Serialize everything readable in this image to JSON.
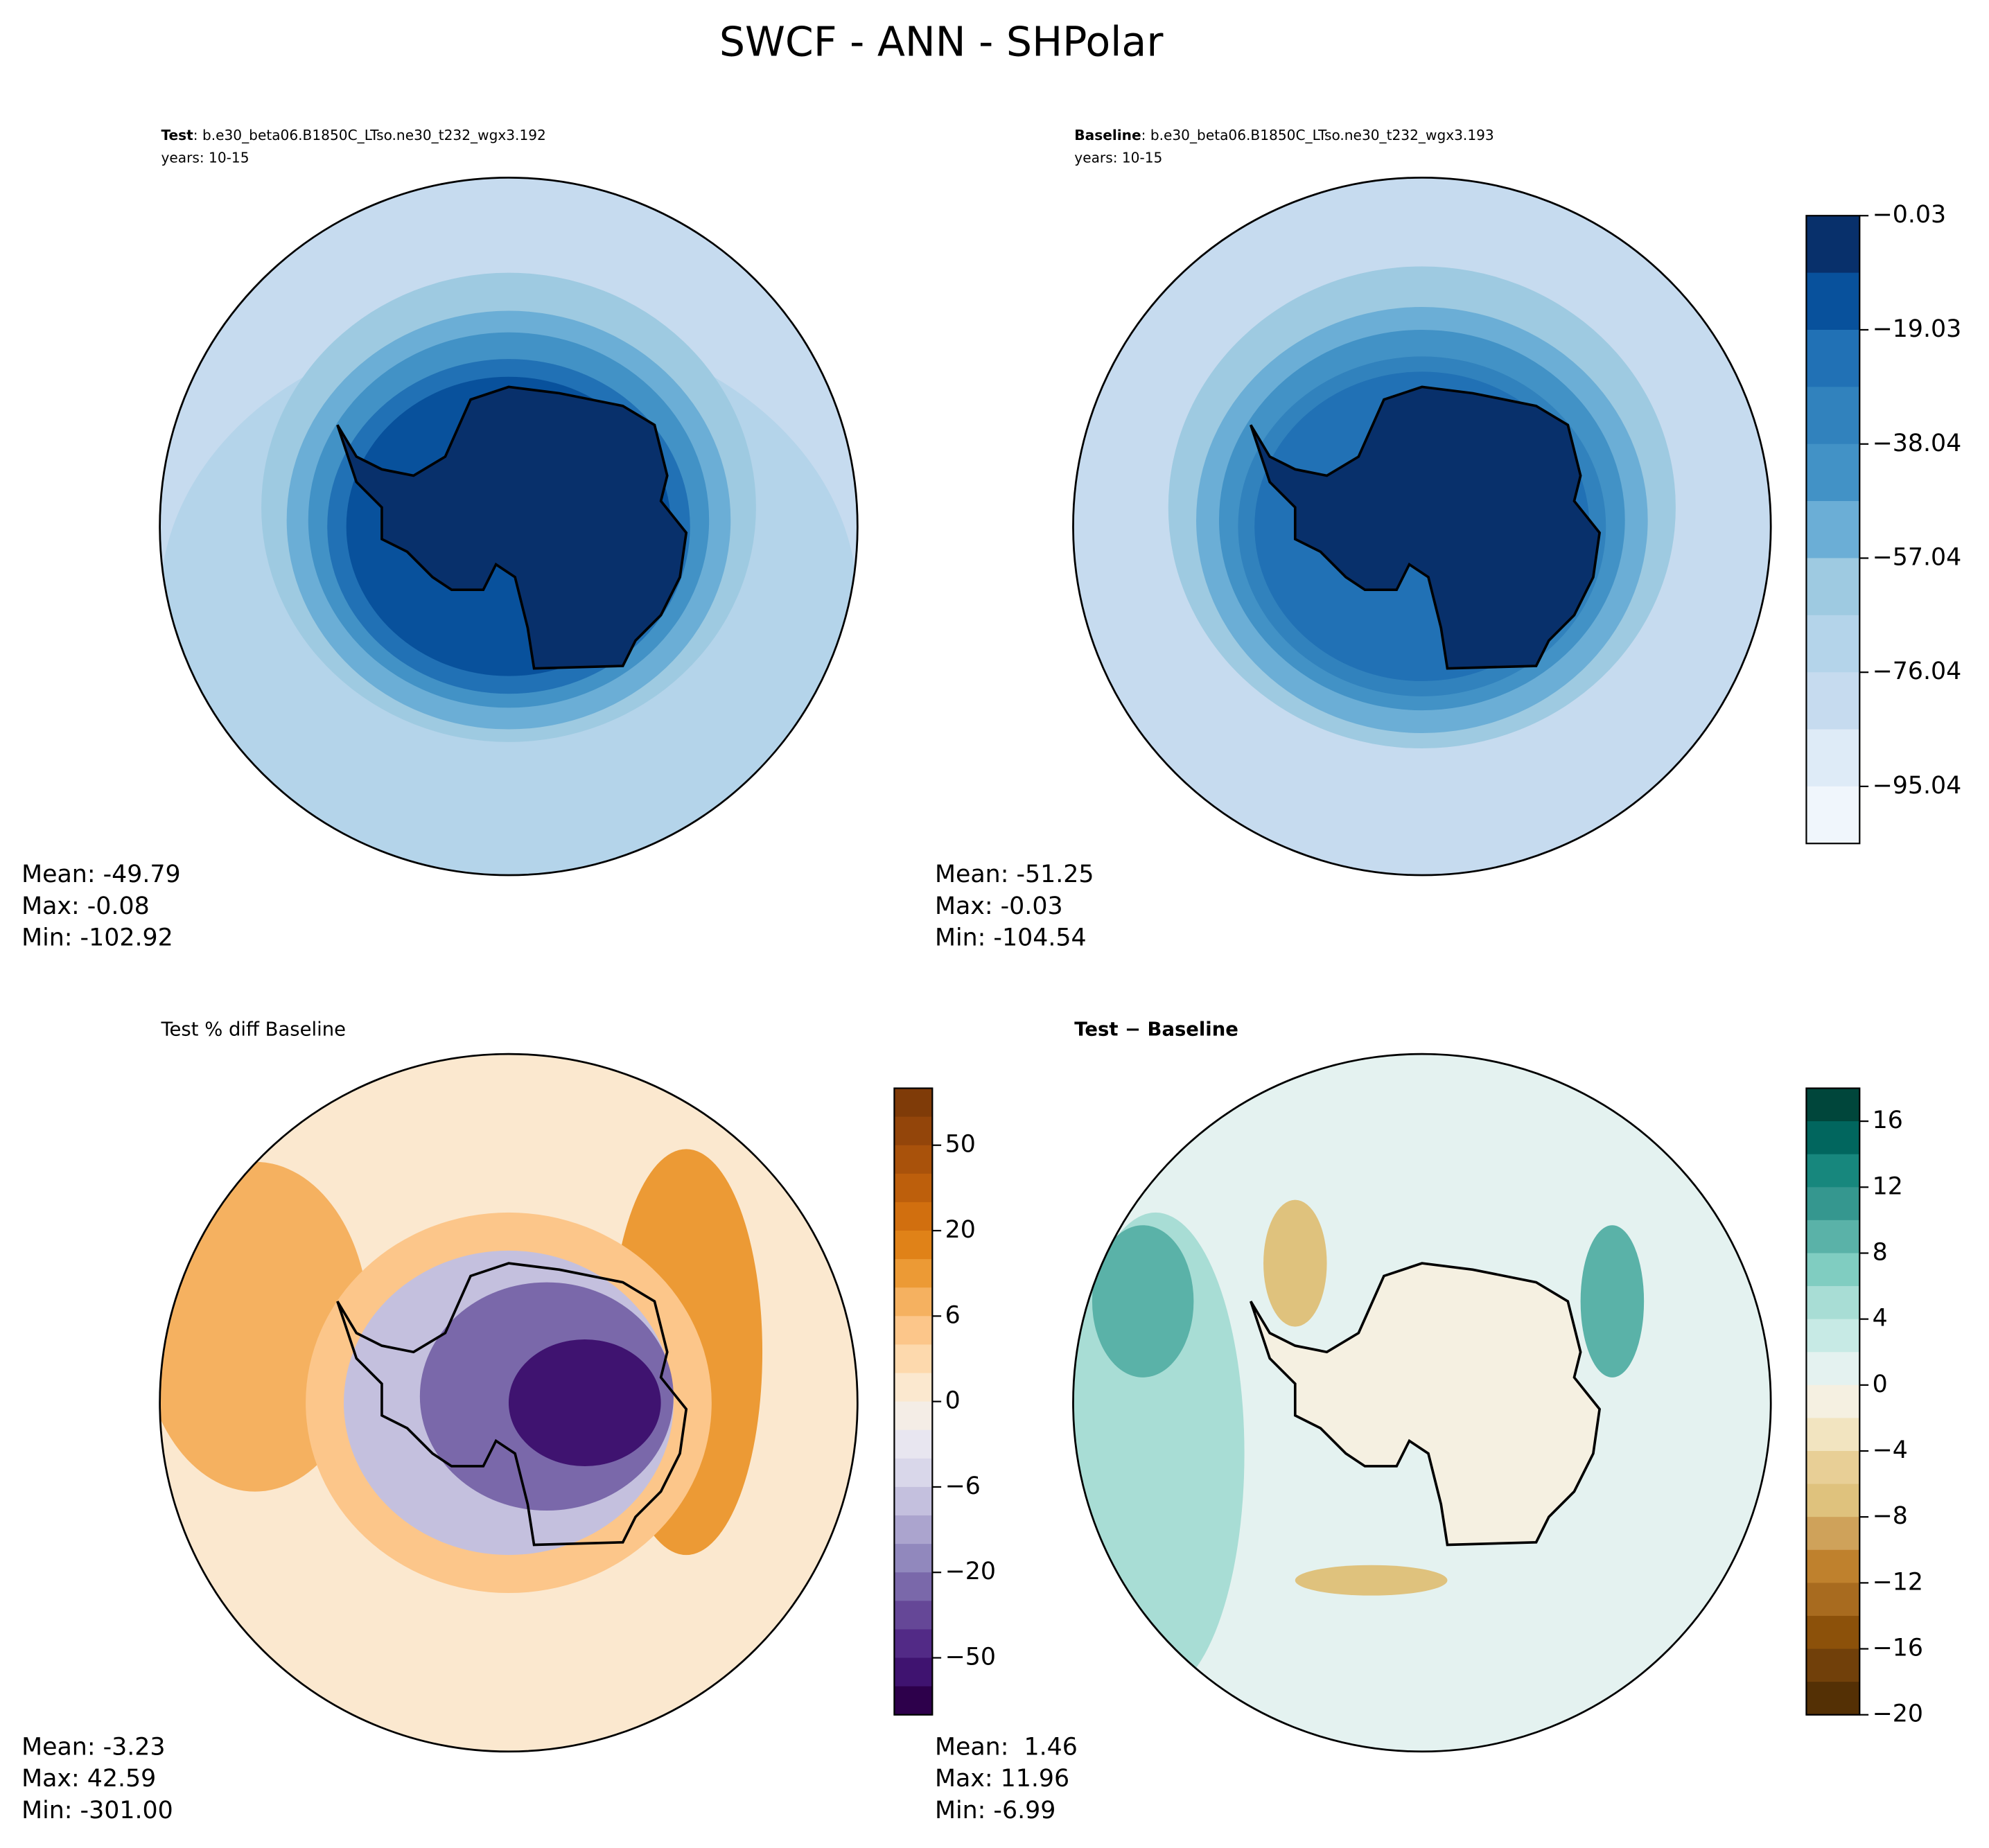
{
  "title": "SWCF - ANN - SHPolar",
  "panels": [
    {
      "label_bold": "Test",
      "label_rest": ": b.e30_beta06.B1850C_LTso.ne30_t232_wgx3.192",
      "years": "years: 10-15",
      "stats": [
        "Mean: -49.79",
        "Max: -0.08",
        "Min: -102.92"
      ]
    },
    {
      "label_bold": "Baseline",
      "label_rest": ": b.e30_beta06.B1850C_LTso.ne30_t232_wgx3.193",
      "years": "years: 10-15",
      "stats": [
        "Mean: -51.25",
        "Max: -0.03",
        "Min: -104.54"
      ]
    },
    {
      "label_rest": "Test % diff Baseline",
      "stats": [
        "Mean: -3.23",
        "Max: 42.59",
        "Min: -301.00"
      ]
    },
    {
      "label_bold": "Test − Baseline",
      "stats": [
        "Mean:  1.46",
        "Max: 11.96",
        "Min: -6.99"
      ]
    }
  ],
  "colorbars": [
    {
      "colors": [
        "#08306b",
        "#08519c",
        "#2171b5",
        "#3182bd",
        "#4292c6",
        "#6baed6",
        "#9ecae1",
        "#b4d4ea",
        "#c6dbef",
        "#deebf7",
        "#f0f6fc"
      ],
      "lim": [
        -104.54,
        -0.03
      ],
      "ticks": [
        {
          "value": -0.03,
          "label": "−0.03"
        },
        {
          "value": -19.03,
          "label": "−19.03"
        },
        {
          "value": -38.04,
          "label": "−38.04"
        },
        {
          "value": -57.04,
          "label": "−57.04"
        },
        {
          "value": -76.04,
          "label": "−76.04"
        },
        {
          "value": -95.04,
          "label": "−95.04"
        }
      ]
    },
    {
      "colors": [
        "#7f3b08",
        "#93450a",
        "#a9520b",
        "#bd5f0c",
        "#d16f0f",
        "#e08218",
        "#ec9a35",
        "#f5b160",
        "#fcc68a",
        "#fdd9ad",
        "#fbe8cf",
        "#f4ede6",
        "#e8e6f0",
        "#d9d7ea",
        "#c4c0de",
        "#aba4ce",
        "#9188bd",
        "#7a68aa",
        "#654797",
        "#522a86",
        "#3f1370",
        "#2d004b"
      ],
      "ticks": [
        50,
        20,
        6,
        0,
        {
          "value": -6,
          "label": "−6"
        },
        {
          "value": -20,
          "label": "−20"
        },
        {
          "value": -50,
          "label": "−50"
        }
      ]
    },
    {
      "colors": [
        "#00463b",
        "#01665e",
        "#17877d",
        "#35978f",
        "#5ab2a8",
        "#80cdc1",
        "#a8ddd5",
        "#c7eae5",
        "#e4f2f0",
        "#f5f0e1",
        "#f2e4c0",
        "#e8cf96",
        "#dfc27d",
        "#cfa25a",
        "#bf812d",
        "#a86b1f",
        "#8c510a",
        "#71400a",
        "#543005"
      ],
      "lim": [
        -20,
        18
      ],
      "ticks": [
        16,
        12,
        8,
        4,
        0,
        {
          "value": -4,
          "label": "−4"
        },
        {
          "value": -8,
          "label": "−8"
        },
        {
          "value": -12,
          "label": "−12"
        },
        {
          "value": -16,
          "label": "−16"
        },
        {
          "value": -20,
          "label": "−20"
        }
      ]
    }
  ]
}
